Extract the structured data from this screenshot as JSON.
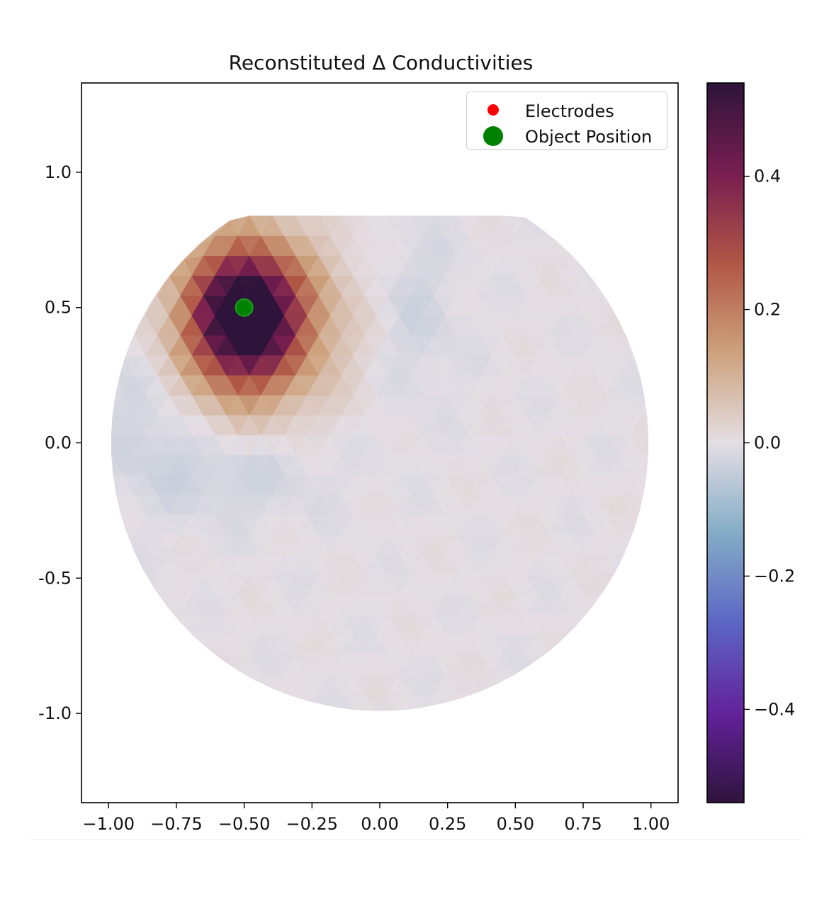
{
  "chart_data": {
    "type": "heatmap",
    "title": "Reconstituted Δ Conductivities",
    "xlabel": "",
    "ylabel": "",
    "xlim": [
      -1.1,
      1.1
    ],
    "ylim": [
      -1.33,
      1.33
    ],
    "xticks": [
      -1.0,
      -0.75,
      -0.5,
      -0.25,
      0.0,
      0.25,
      0.5,
      0.75,
      1.0
    ],
    "xtick_labels": [
      "−1.00",
      "−0.75",
      "−0.50",
      "−0.25",
      "0.00",
      "0.25",
      "0.50",
      "0.75",
      "1.00"
    ],
    "yticks": [
      1.0,
      0.5,
      0.0,
      -0.5,
      -1.0
    ],
    "ytick_labels": [
      "1.0",
      "0.5",
      "0.0",
      "-0.5",
      "-1.0"
    ],
    "domain": {
      "shape": "circle",
      "center": [
        0,
        0
      ],
      "radius": 0.99
    },
    "object_position": [
      -0.5,
      0.5
    ],
    "colorbar": {
      "colormap": "twilight_shifted",
      "range": [
        -0.54,
        0.54
      ],
      "ticks": [
        0.4,
        0.2,
        0.0,
        -0.2,
        -0.4
      ],
      "tick_labels": [
        "0.4",
        "0.2",
        "0.0",
        "−0.2",
        "−0.4"
      ]
    },
    "field_features": [
      {
        "kind": "peak",
        "center": [
          -0.5,
          0.47
        ],
        "amplitude": 0.52,
        "sigma_x": 0.13,
        "sigma_y": 0.16
      },
      {
        "kind": "halo",
        "center": [
          -0.45,
          0.45
        ],
        "amplitude": 0.2,
        "sigma_x": 0.21,
        "sigma_y": 0.22
      },
      {
        "kind": "trough",
        "center": [
          0.12,
          0.48
        ],
        "amplitude": -0.03,
        "sigma_x": 0.12,
        "sigma_y": 0.22
      },
      {
        "kind": "trough",
        "center": [
          -0.55,
          -0.1
        ],
        "amplitude": -0.035,
        "sigma_x": 0.25,
        "sigma_y": 0.12
      },
      {
        "kind": "trough",
        "center": [
          -0.85,
          0.15
        ],
        "amplitude": -0.03,
        "sigma_x": 0.12,
        "sigma_y": 0.2
      }
    ],
    "legend": {
      "placement": "upper right",
      "entries": [
        {
          "label": "Electrodes",
          "marker": "small-dot",
          "color": "#ff0000"
        },
        {
          "label": "Object Position",
          "marker": "large-dot",
          "color": "#008000"
        }
      ]
    }
  }
}
